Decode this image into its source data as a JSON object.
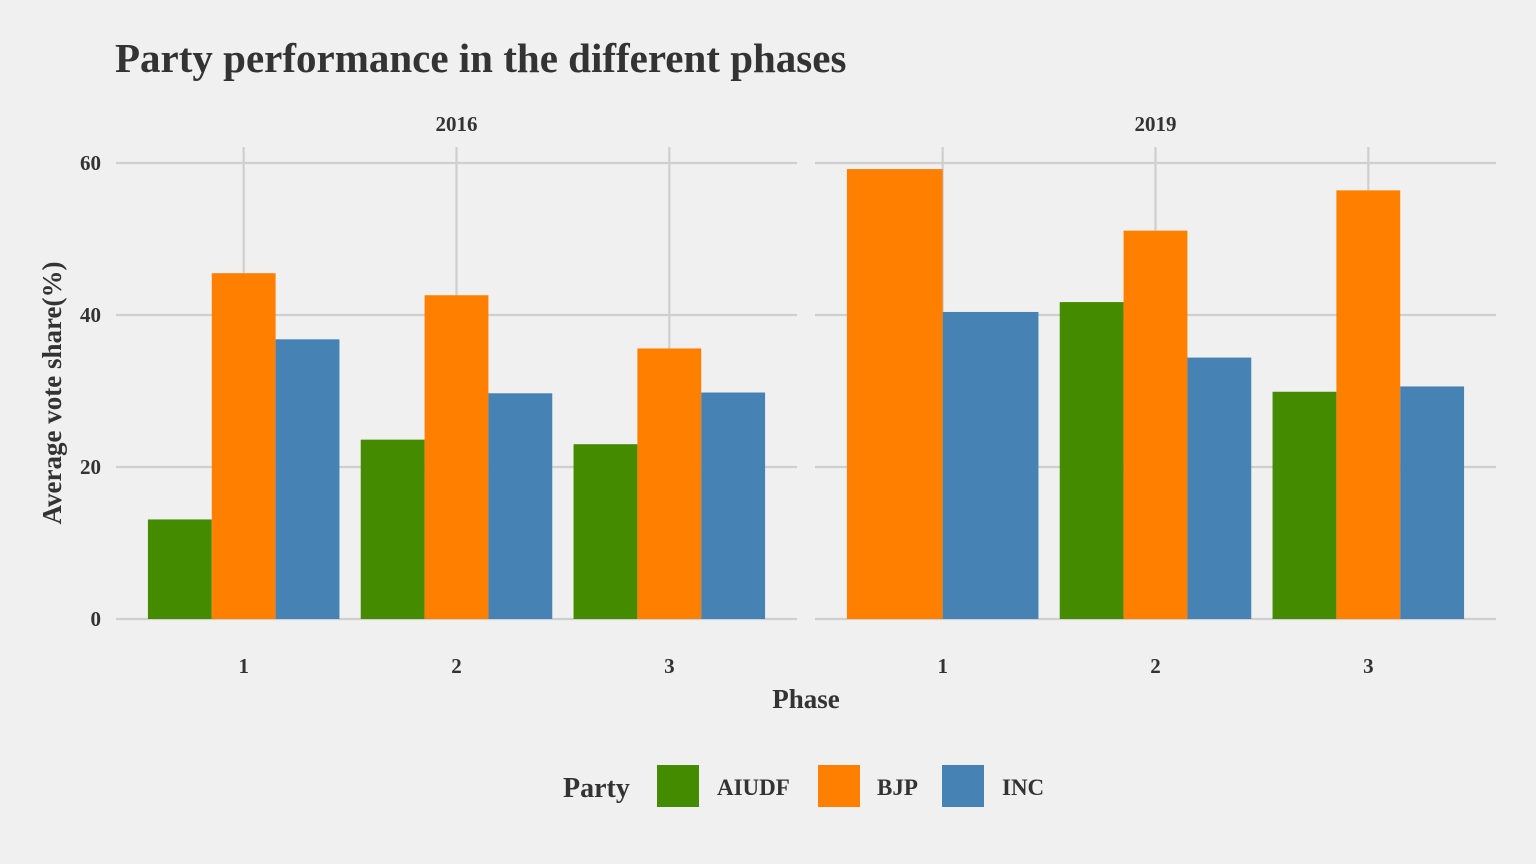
{
  "chart_data": {
    "type": "bar",
    "title": "Party performance in the different phases",
    "xlabel": "Phase",
    "ylabel": "Average vote share(%)",
    "ylim": [
      0,
      60
    ],
    "yticks": [
      "0",
      "20",
      "40",
      "60"
    ],
    "categories": [
      "1",
      "2",
      "3"
    ],
    "grid": true,
    "legend": {
      "title": "Party",
      "position": "bottom"
    },
    "colors": {
      "AIUDF": "#458b00",
      "BJP": "#ff7f00",
      "INC": "#4682b4"
    },
    "facets": [
      {
        "label": "2016",
        "series": [
          {
            "name": "AIUDF",
            "values": [
              13.1,
              23.6,
              23.0
            ]
          },
          {
            "name": "BJP",
            "values": [
              45.5,
              42.6,
              35.6
            ]
          },
          {
            "name": "INC",
            "values": [
              36.8,
              29.7,
              29.8
            ]
          }
        ]
      },
      {
        "label": "2019",
        "series": [
          {
            "name": "AIUDF",
            "values": [
              null,
              41.7,
              29.9
            ]
          },
          {
            "name": "BJP",
            "values": [
              59.2,
              51.1,
              56.4
            ]
          },
          {
            "name": "INC",
            "values": [
              40.4,
              34.4,
              30.6
            ]
          }
        ]
      }
    ]
  }
}
